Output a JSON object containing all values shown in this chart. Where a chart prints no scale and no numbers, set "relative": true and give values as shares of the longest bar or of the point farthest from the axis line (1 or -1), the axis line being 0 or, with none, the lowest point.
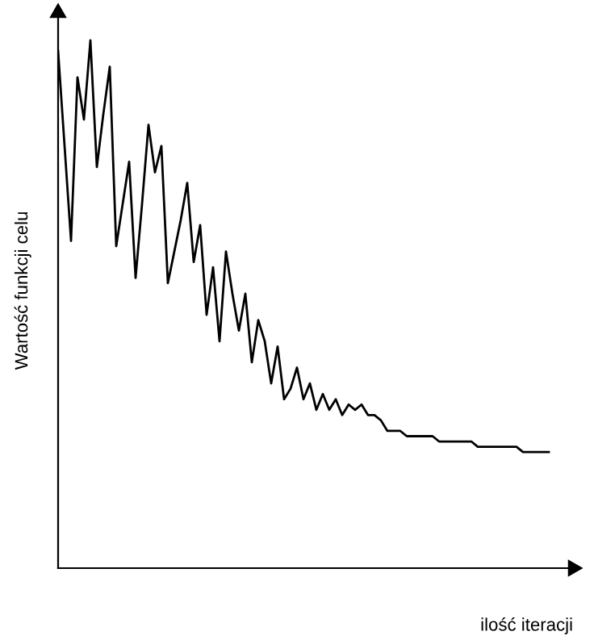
{
  "chart_data": {
    "type": "line",
    "relative": true,
    "xlabel": "ilość iteracji",
    "ylabel": "Wartość funkcji celu",
    "categories": [
      null,
      null,
      null,
      null,
      null,
      null,
      null,
      null,
      null,
      null,
      null,
      null,
      null,
      null,
      null,
      null,
      null,
      null,
      null,
      null,
      null,
      null,
      null,
      null,
      null,
      null,
      null,
      null,
      null,
      null,
      null,
      null,
      null,
      null,
      null,
      null,
      null,
      null,
      null,
      null,
      null,
      null,
      null,
      null,
      null,
      null,
      null,
      null,
      null,
      null,
      null,
      null,
      null,
      null,
      null,
      null,
      null,
      null,
      null,
      null,
      null,
      null,
      null,
      null,
      null,
      null,
      null,
      null,
      null,
      null,
      null,
      null,
      null,
      null,
      null,
      null,
      null
    ],
    "series": [
      {
        "color": "#000000",
        "values": [
          0.98,
          0.8,
          0.62,
          0.93,
          0.85,
          1.0,
          0.76,
          0.86,
          0.95,
          0.61,
          0.69,
          0.77,
          0.55,
          0.69,
          0.84,
          0.75,
          0.8,
          0.54,
          0.6,
          0.66,
          0.73,
          0.58,
          0.65,
          0.48,
          0.57,
          0.43,
          0.6,
          0.52,
          0.45,
          0.52,
          0.39,
          0.47,
          0.43,
          0.35,
          0.42,
          0.32,
          0.34,
          0.38,
          0.32,
          0.35,
          0.3,
          0.33,
          0.3,
          0.32,
          0.29,
          0.31,
          0.3,
          0.31,
          0.29,
          0.29,
          0.28,
          0.26,
          0.26,
          0.26,
          0.25,
          0.25,
          0.25,
          0.25,
          0.25,
          0.24,
          0.24,
          0.24,
          0.24,
          0.24,
          0.24,
          0.23,
          0.23,
          0.23,
          0.23,
          0.23,
          0.23,
          0.23,
          0.22,
          0.22,
          0.22,
          0.22,
          0.22
        ]
      }
    ],
    "tick_labels": false
  }
}
